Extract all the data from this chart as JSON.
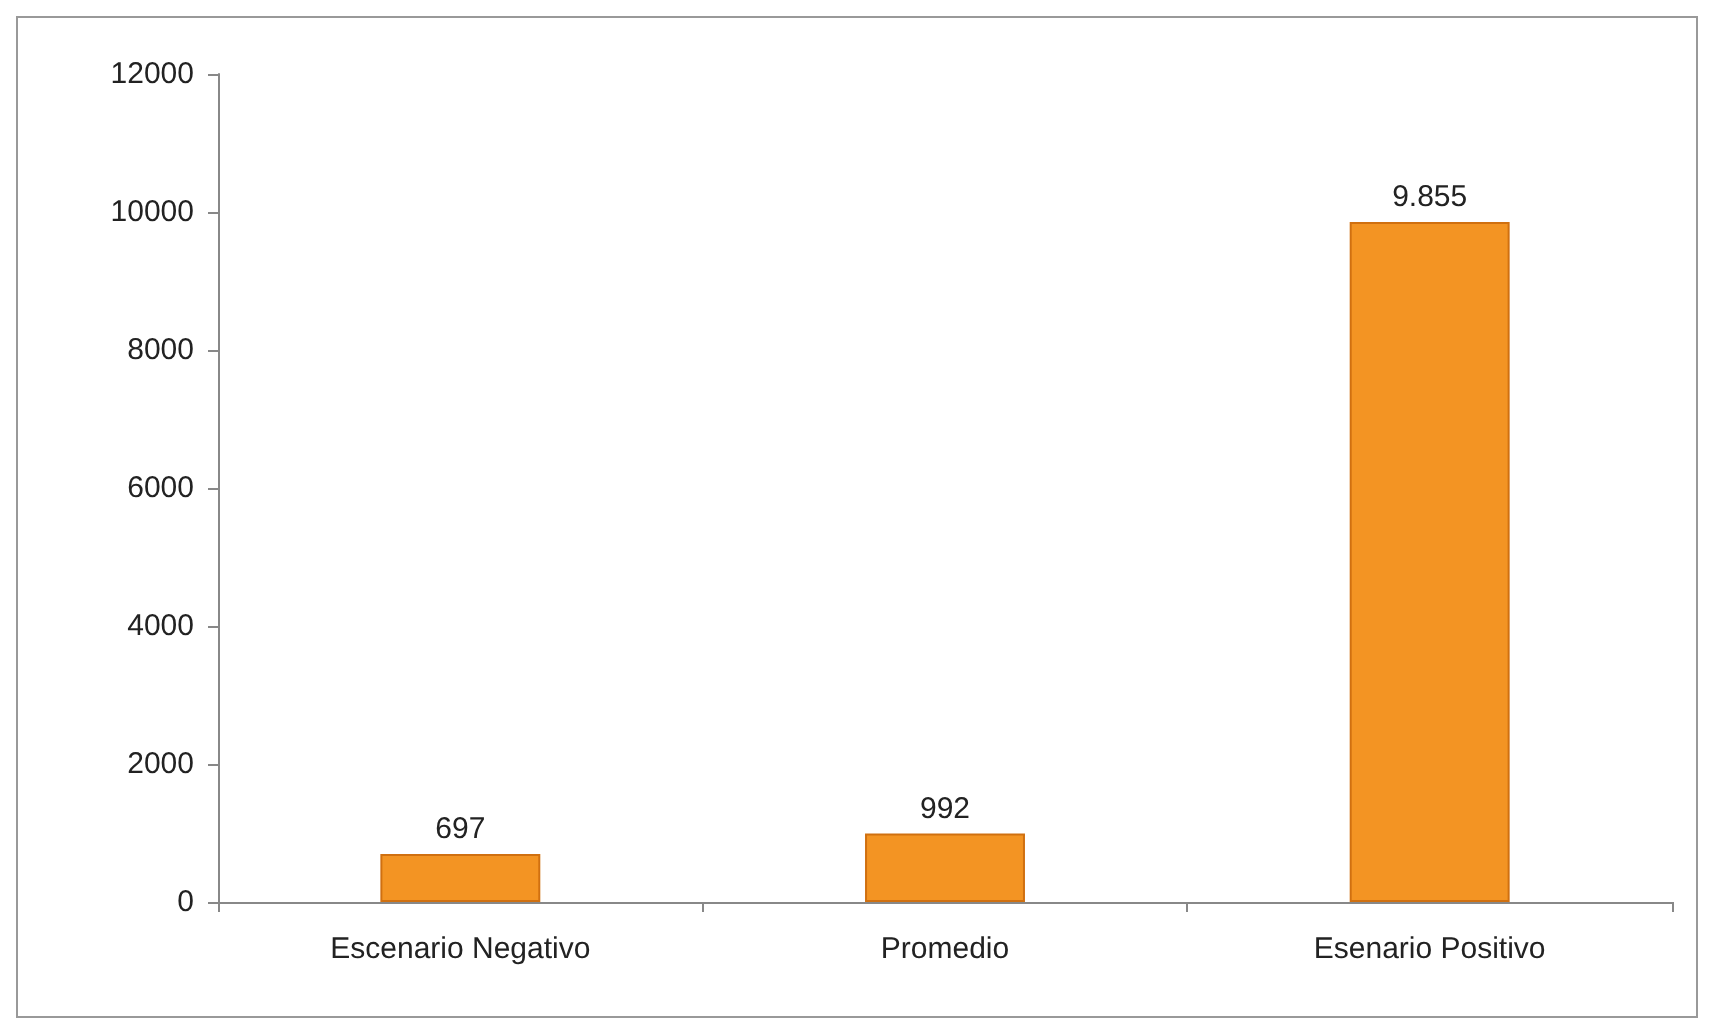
{
  "chart_data": {
    "type": "bar",
    "categories": [
      "Escenario Negativo",
      "Promedio",
      "Esenario Positivo"
    ],
    "values": [
      697,
      992,
      9855
    ],
    "value_labels": [
      "697",
      "992",
      "9.855"
    ],
    "color": "#f39423",
    "ylim": [
      0,
      12000
    ],
    "yticks": [
      0,
      2000,
      4000,
      6000,
      8000,
      10000,
      12000
    ]
  }
}
